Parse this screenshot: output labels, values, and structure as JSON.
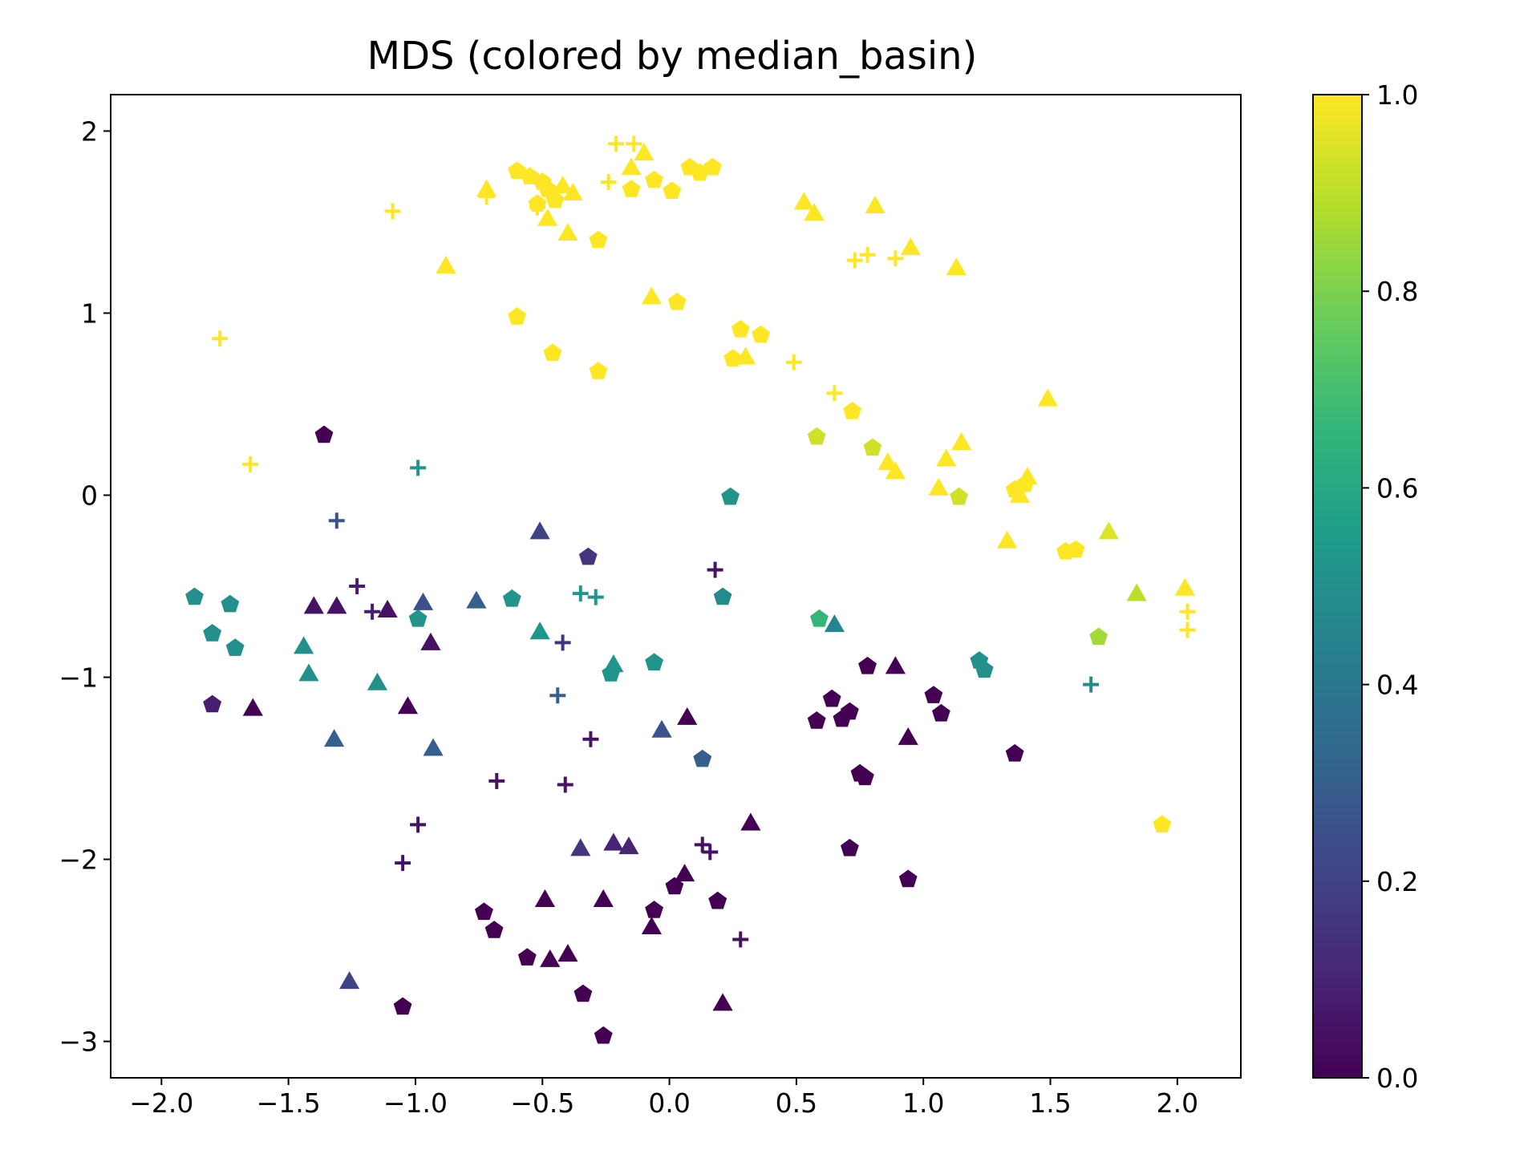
{
  "chart_data": {
    "type": "scatter",
    "title": "MDS (colored by median_basin)",
    "xlabel": "",
    "ylabel": "",
    "xlim": [
      -2.2,
      2.25
    ],
    "ylim": [
      -3.2,
      2.2
    ],
    "xticks": [
      -2.0,
      -1.5,
      -1.0,
      -0.5,
      0.0,
      0.5,
      1.0,
      1.5,
      2.0
    ],
    "xtick_labels": [
      "−2.0",
      "−1.5",
      "−1.0",
      "−0.5",
      "0.0",
      "0.5",
      "1.0",
      "1.5",
      "2.0"
    ],
    "yticks": [
      2,
      1,
      0,
      -1,
      -2,
      -3
    ],
    "ytick_labels": [
      "2",
      "1",
      "0",
      "−1",
      "−2",
      "−3"
    ],
    "grid": false,
    "colorbar": {
      "colormap": "viridis",
      "range": [
        0.0,
        1.0
      ],
      "ticks": [
        0.0,
        0.2,
        0.4,
        0.6,
        0.8,
        1.0
      ],
      "tick_labels": [
        "0.0",
        "0.2",
        "0.4",
        "0.6",
        "0.8",
        "1.0"
      ],
      "colormap_stops": [
        "#440154",
        "#482878",
        "#3e4989",
        "#31688e",
        "#26828e",
        "#1f9e89",
        "#35b779",
        "#6ece58",
        "#b5de2b",
        "#fde725"
      ]
    },
    "marker_shapes": [
      "pentagon",
      "triangle",
      "plus"
    ],
    "points": [
      {
        "x": -0.6,
        "y": 1.78,
        "m": "pentagon",
        "c": 1.0
      },
      {
        "x": -0.55,
        "y": 1.75,
        "m": "pentagon",
        "c": 1.0
      },
      {
        "x": -0.5,
        "y": 1.72,
        "m": "pentagon",
        "c": 1.0
      },
      {
        "x": -0.48,
        "y": 1.68,
        "m": "pentagon",
        "c": 1.0
      },
      {
        "x": -0.45,
        "y": 1.62,
        "m": "pentagon",
        "c": 1.0
      },
      {
        "x": -0.52,
        "y": 1.6,
        "m": "pentagon",
        "c": 1.0
      },
      {
        "x": -0.28,
        "y": 1.4,
        "m": "pentagon",
        "c": 1.0
      },
      {
        "x": -0.15,
        "y": 1.68,
        "m": "pentagon",
        "c": 1.0
      },
      {
        "x": -0.06,
        "y": 1.73,
        "m": "pentagon",
        "c": 1.0
      },
      {
        "x": 0.01,
        "y": 1.67,
        "m": "pentagon",
        "c": 1.0
      },
      {
        "x": 0.08,
        "y": 1.8,
        "m": "pentagon",
        "c": 1.0
      },
      {
        "x": 0.12,
        "y": 1.77,
        "m": "pentagon",
        "c": 1.0
      },
      {
        "x": 0.17,
        "y": 1.8,
        "m": "pentagon",
        "c": 1.0
      },
      {
        "x": -0.6,
        "y": 0.98,
        "m": "pentagon",
        "c": 1.0
      },
      {
        "x": -0.46,
        "y": 0.78,
        "m": "pentagon",
        "c": 1.0
      },
      {
        "x": -0.28,
        "y": 0.68,
        "m": "pentagon",
        "c": 1.0
      },
      {
        "x": 0.03,
        "y": 1.06,
        "m": "pentagon",
        "c": 1.0
      },
      {
        "x": 0.28,
        "y": 0.91,
        "m": "pentagon",
        "c": 1.0
      },
      {
        "x": 0.36,
        "y": 0.88,
        "m": "pentagon",
        "c": 1.0
      },
      {
        "x": 0.25,
        "y": 0.75,
        "m": "pentagon",
        "c": 1.0
      },
      {
        "x": 0.72,
        "y": 0.46,
        "m": "pentagon",
        "c": 1.0
      },
      {
        "x": 0.58,
        "y": 0.32,
        "m": "pentagon",
        "c": 0.93
      },
      {
        "x": 0.8,
        "y": 0.26,
        "m": "pentagon",
        "c": 0.93
      },
      {
        "x": 1.14,
        "y": -0.01,
        "m": "pentagon",
        "c": 0.93
      },
      {
        "x": 1.36,
        "y": 0.03,
        "m": "pentagon",
        "c": 1.0
      },
      {
        "x": 1.4,
        "y": 0.06,
        "m": "pentagon",
        "c": 1.0
      },
      {
        "x": 1.56,
        "y": -0.31,
        "m": "pentagon",
        "c": 1.0
      },
      {
        "x": 1.6,
        "y": -0.3,
        "m": "pentagon",
        "c": 1.0
      },
      {
        "x": 1.69,
        "y": -0.78,
        "m": "pentagon",
        "c": 0.86
      },
      {
        "x": 1.94,
        "y": -1.81,
        "m": "pentagon",
        "c": 1.0
      },
      {
        "x": 0.59,
        "y": -0.68,
        "m": "pentagon",
        "c": 0.66
      },
      {
        "x": 0.24,
        "y": -0.01,
        "m": "pentagon",
        "c": 0.52
      },
      {
        "x": 0.21,
        "y": -0.56,
        "m": "pentagon",
        "c": 0.48
      },
      {
        "x": 1.22,
        "y": -0.91,
        "m": "pentagon",
        "c": 0.5
      },
      {
        "x": 1.24,
        "y": -0.96,
        "m": "pentagon",
        "c": 0.5
      },
      {
        "x": -1.87,
        "y": -0.56,
        "m": "pentagon",
        "c": 0.5
      },
      {
        "x": -1.73,
        "y": -0.6,
        "m": "pentagon",
        "c": 0.5
      },
      {
        "x": -1.8,
        "y": -0.76,
        "m": "pentagon",
        "c": 0.5
      },
      {
        "x": -1.71,
        "y": -0.84,
        "m": "pentagon",
        "c": 0.5
      },
      {
        "x": -0.62,
        "y": -0.57,
        "m": "pentagon",
        "c": 0.52
      },
      {
        "x": -0.99,
        "y": -0.68,
        "m": "pentagon",
        "c": 0.52
      },
      {
        "x": -0.23,
        "y": -0.98,
        "m": "pentagon",
        "c": 0.52
      },
      {
        "x": -0.06,
        "y": -0.92,
        "m": "pentagon",
        "c": 0.52
      },
      {
        "x": -0.32,
        "y": -0.34,
        "m": "pentagon",
        "c": 0.15
      },
      {
        "x": 0.13,
        "y": -1.45,
        "m": "pentagon",
        "c": 0.3
      },
      {
        "x": -1.36,
        "y": 0.33,
        "m": "pentagon",
        "c": 0.0
      },
      {
        "x": -1.8,
        "y": -1.15,
        "m": "pentagon",
        "c": 0.08
      },
      {
        "x": -1.05,
        "y": -2.81,
        "m": "pentagon",
        "c": 0.0
      },
      {
        "x": -0.73,
        "y": -2.29,
        "m": "pentagon",
        "c": 0.0
      },
      {
        "x": -0.69,
        "y": -2.39,
        "m": "pentagon",
        "c": 0.0
      },
      {
        "x": -0.56,
        "y": -2.54,
        "m": "pentagon",
        "c": 0.0
      },
      {
        "x": -0.34,
        "y": -2.74,
        "m": "pentagon",
        "c": 0.0
      },
      {
        "x": -0.26,
        "y": -2.97,
        "m": "pentagon",
        "c": 0.0
      },
      {
        "x": -0.06,
        "y": -2.28,
        "m": "pentagon",
        "c": 0.0
      },
      {
        "x": 0.02,
        "y": -2.15,
        "m": "pentagon",
        "c": 0.0
      },
      {
        "x": 0.19,
        "y": -2.23,
        "m": "pentagon",
        "c": 0.0
      },
      {
        "x": 0.58,
        "y": -1.24,
        "m": "pentagon",
        "c": 0.0
      },
      {
        "x": 0.64,
        "y": -1.12,
        "m": "pentagon",
        "c": 0.0
      },
      {
        "x": 0.68,
        "y": -1.23,
        "m": "pentagon",
        "c": 0.0
      },
      {
        "x": 0.71,
        "y": -1.19,
        "m": "pentagon",
        "c": 0.0
      },
      {
        "x": 0.78,
        "y": -0.94,
        "m": "pentagon",
        "c": 0.0
      },
      {
        "x": 0.75,
        "y": -1.53,
        "m": "pentagon",
        "c": 0.0
      },
      {
        "x": 0.77,
        "y": -1.55,
        "m": "pentagon",
        "c": 0.0
      },
      {
        "x": 0.71,
        "y": -1.94,
        "m": "pentagon",
        "c": 0.0
      },
      {
        "x": 0.94,
        "y": -2.11,
        "m": "pentagon",
        "c": 0.0
      },
      {
        "x": 1.04,
        "y": -1.1,
        "m": "pentagon",
        "c": 0.0
      },
      {
        "x": 1.07,
        "y": -1.2,
        "m": "pentagon",
        "c": 0.0
      },
      {
        "x": 1.36,
        "y": -1.42,
        "m": "pentagon",
        "c": 0.0
      },
      {
        "x": -0.72,
        "y": 1.68,
        "m": "triangle",
        "c": 1.0
      },
      {
        "x": -0.48,
        "y": 1.52,
        "m": "triangle",
        "c": 1.0
      },
      {
        "x": -0.42,
        "y": 1.7,
        "m": "triangle",
        "c": 1.0
      },
      {
        "x": -0.4,
        "y": 1.44,
        "m": "triangle",
        "c": 1.0
      },
      {
        "x": -0.38,
        "y": 1.66,
        "m": "triangle",
        "c": 1.0
      },
      {
        "x": -0.15,
        "y": 1.8,
        "m": "triangle",
        "c": 1.0
      },
      {
        "x": -0.1,
        "y": 1.88,
        "m": "triangle",
        "c": 1.0
      },
      {
        "x": -0.88,
        "y": 1.26,
        "m": "triangle",
        "c": 1.0
      },
      {
        "x": -0.07,
        "y": 1.09,
        "m": "triangle",
        "c": 1.0
      },
      {
        "x": 0.53,
        "y": 1.61,
        "m": "triangle",
        "c": 1.0
      },
      {
        "x": 0.57,
        "y": 1.55,
        "m": "triangle",
        "c": 1.0
      },
      {
        "x": 0.81,
        "y": 1.59,
        "m": "triangle",
        "c": 1.0
      },
      {
        "x": 0.95,
        "y": 1.36,
        "m": "triangle",
        "c": 1.0
      },
      {
        "x": 1.13,
        "y": 1.25,
        "m": "triangle",
        "c": 1.0
      },
      {
        "x": 0.3,
        "y": 0.76,
        "m": "triangle",
        "c": 1.0
      },
      {
        "x": 1.49,
        "y": 0.53,
        "m": "triangle",
        "c": 1.0
      },
      {
        "x": 1.15,
        "y": 0.29,
        "m": "triangle",
        "c": 1.0
      },
      {
        "x": 1.09,
        "y": 0.2,
        "m": "triangle",
        "c": 1.0
      },
      {
        "x": 0.86,
        "y": 0.18,
        "m": "triangle",
        "c": 1.0
      },
      {
        "x": 0.89,
        "y": 0.13,
        "m": "triangle",
        "c": 1.0
      },
      {
        "x": 1.06,
        "y": 0.04,
        "m": "triangle",
        "c": 1.0
      },
      {
        "x": 1.38,
        "y": 0.0,
        "m": "triangle",
        "c": 1.0
      },
      {
        "x": 1.41,
        "y": 0.1,
        "m": "triangle",
        "c": 1.0
      },
      {
        "x": 1.33,
        "y": -0.25,
        "m": "triangle",
        "c": 1.0
      },
      {
        "x": 1.73,
        "y": -0.2,
        "m": "triangle",
        "c": 0.95
      },
      {
        "x": 1.84,
        "y": -0.54,
        "m": "triangle",
        "c": 0.9
      },
      {
        "x": 2.03,
        "y": -0.51,
        "m": "triangle",
        "c": 1.0
      },
      {
        "x": -0.51,
        "y": -0.2,
        "m": "triangle",
        "c": 0.2
      },
      {
        "x": -0.97,
        "y": -0.59,
        "m": "triangle",
        "c": 0.25
      },
      {
        "x": -0.76,
        "y": -0.58,
        "m": "triangle",
        "c": 0.3
      },
      {
        "x": -0.51,
        "y": -0.75,
        "m": "triangle",
        "c": 0.52
      },
      {
        "x": -1.44,
        "y": -0.83,
        "m": "triangle",
        "c": 0.5
      },
      {
        "x": -1.42,
        "y": -0.98,
        "m": "triangle",
        "c": 0.5
      },
      {
        "x": -1.15,
        "y": -1.03,
        "m": "triangle",
        "c": 0.5
      },
      {
        "x": -0.22,
        "y": -0.93,
        "m": "triangle",
        "c": 0.52
      },
      {
        "x": 0.65,
        "y": -0.71,
        "m": "triangle",
        "c": 0.46
      },
      {
        "x": -1.32,
        "y": -1.34,
        "m": "triangle",
        "c": 0.3
      },
      {
        "x": -0.93,
        "y": -1.39,
        "m": "triangle",
        "c": 0.3
      },
      {
        "x": -0.03,
        "y": -1.29,
        "m": "triangle",
        "c": 0.26
      },
      {
        "x": -1.26,
        "y": -2.67,
        "m": "triangle",
        "c": 0.2
      },
      {
        "x": -0.35,
        "y": -1.94,
        "m": "triangle",
        "c": 0.15
      },
      {
        "x": -0.22,
        "y": -1.91,
        "m": "triangle",
        "c": 0.1
      },
      {
        "x": -0.16,
        "y": -1.93,
        "m": "triangle",
        "c": 0.1
      },
      {
        "x": -1.4,
        "y": -0.61,
        "m": "triangle",
        "c": 0.05
      },
      {
        "x": -1.31,
        "y": -0.61,
        "m": "triangle",
        "c": 0.05
      },
      {
        "x": -1.11,
        "y": -0.63,
        "m": "triangle",
        "c": 0.05
      },
      {
        "x": -0.94,
        "y": -0.81,
        "m": "triangle",
        "c": 0.05
      },
      {
        "x": -1.64,
        "y": -1.17,
        "m": "triangle",
        "c": 0.0
      },
      {
        "x": -1.03,
        "y": -1.16,
        "m": "triangle",
        "c": 0.0
      },
      {
        "x": 0.07,
        "y": -1.22,
        "m": "triangle",
        "c": 0.0
      },
      {
        "x": 0.89,
        "y": -0.94,
        "m": "triangle",
        "c": 0.0
      },
      {
        "x": 0.94,
        "y": -1.33,
        "m": "triangle",
        "c": 0.0
      },
      {
        "x": 0.32,
        "y": -1.8,
        "m": "triangle",
        "c": 0.0
      },
      {
        "x": -0.49,
        "y": -2.22,
        "m": "triangle",
        "c": 0.0
      },
      {
        "x": -0.26,
        "y": -2.22,
        "m": "triangle",
        "c": 0.0
      },
      {
        "x": 0.06,
        "y": -2.08,
        "m": "triangle",
        "c": 0.0
      },
      {
        "x": -0.47,
        "y": -2.55,
        "m": "triangle",
        "c": 0.0
      },
      {
        "x": -0.4,
        "y": -2.52,
        "m": "triangle",
        "c": 0.0
      },
      {
        "x": -0.07,
        "y": -2.37,
        "m": "triangle",
        "c": 0.0
      },
      {
        "x": 0.21,
        "y": -2.79,
        "m": "triangle",
        "c": 0.0
      },
      {
        "x": -1.09,
        "y": 1.56,
        "m": "plus",
        "c": 1.0
      },
      {
        "x": -0.72,
        "y": 1.64,
        "m": "plus",
        "c": 1.0
      },
      {
        "x": -0.52,
        "y": 1.58,
        "m": "plus",
        "c": 1.0
      },
      {
        "x": -0.24,
        "y": 1.72,
        "m": "plus",
        "c": 1.0
      },
      {
        "x": -0.21,
        "y": 1.93,
        "m": "plus",
        "c": 1.0
      },
      {
        "x": -0.14,
        "y": 1.93,
        "m": "plus",
        "c": 1.0
      },
      {
        "x": -1.77,
        "y": 0.86,
        "m": "plus",
        "c": 1.0
      },
      {
        "x": -1.65,
        "y": 0.17,
        "m": "plus",
        "c": 1.0
      },
      {
        "x": 0.49,
        "y": 0.73,
        "m": "plus",
        "c": 1.0
      },
      {
        "x": 0.65,
        "y": 0.56,
        "m": "plus",
        "c": 1.0
      },
      {
        "x": 0.73,
        "y": 1.29,
        "m": "plus",
        "c": 1.0
      },
      {
        "x": 0.78,
        "y": 1.32,
        "m": "plus",
        "c": 1.0
      },
      {
        "x": 0.89,
        "y": 1.3,
        "m": "plus",
        "c": 1.0
      },
      {
        "x": 2.04,
        "y": -0.64,
        "m": "plus",
        "c": 1.0
      },
      {
        "x": 2.04,
        "y": -0.74,
        "m": "plus",
        "c": 1.0
      },
      {
        "x": -0.99,
        "y": 0.15,
        "m": "plus",
        "c": 0.52
      },
      {
        "x": -0.35,
        "y": -0.54,
        "m": "plus",
        "c": 0.52
      },
      {
        "x": -0.29,
        "y": -0.56,
        "m": "plus",
        "c": 0.52
      },
      {
        "x": 1.66,
        "y": -1.04,
        "m": "plus",
        "c": 0.48
      },
      {
        "x": -1.31,
        "y": -0.14,
        "m": "plus",
        "c": 0.26
      },
      {
        "x": -0.42,
        "y": -0.81,
        "m": "plus",
        "c": 0.15
      },
      {
        "x": -0.44,
        "y": -1.1,
        "m": "plus",
        "c": 0.3
      },
      {
        "x": -1.23,
        "y": -0.5,
        "m": "plus",
        "c": 0.08
      },
      {
        "x": -1.17,
        "y": -0.64,
        "m": "plus",
        "c": 0.08
      },
      {
        "x": 0.18,
        "y": -0.41,
        "m": "plus",
        "c": 0.05
      },
      {
        "x": -0.31,
        "y": -1.34,
        "m": "plus",
        "c": 0.05
      },
      {
        "x": -0.68,
        "y": -1.57,
        "m": "plus",
        "c": 0.05
      },
      {
        "x": -0.41,
        "y": -1.59,
        "m": "plus",
        "c": 0.05
      },
      {
        "x": -0.99,
        "y": -1.81,
        "m": "plus",
        "c": 0.05
      },
      {
        "x": -1.05,
        "y": -2.02,
        "m": "plus",
        "c": 0.05
      },
      {
        "x": 0.13,
        "y": -1.92,
        "m": "plus",
        "c": 0.05
      },
      {
        "x": 0.16,
        "y": -1.96,
        "m": "plus",
        "c": 0.05
      },
      {
        "x": 0.28,
        "y": -2.44,
        "m": "plus",
        "c": 0.05
      }
    ]
  }
}
